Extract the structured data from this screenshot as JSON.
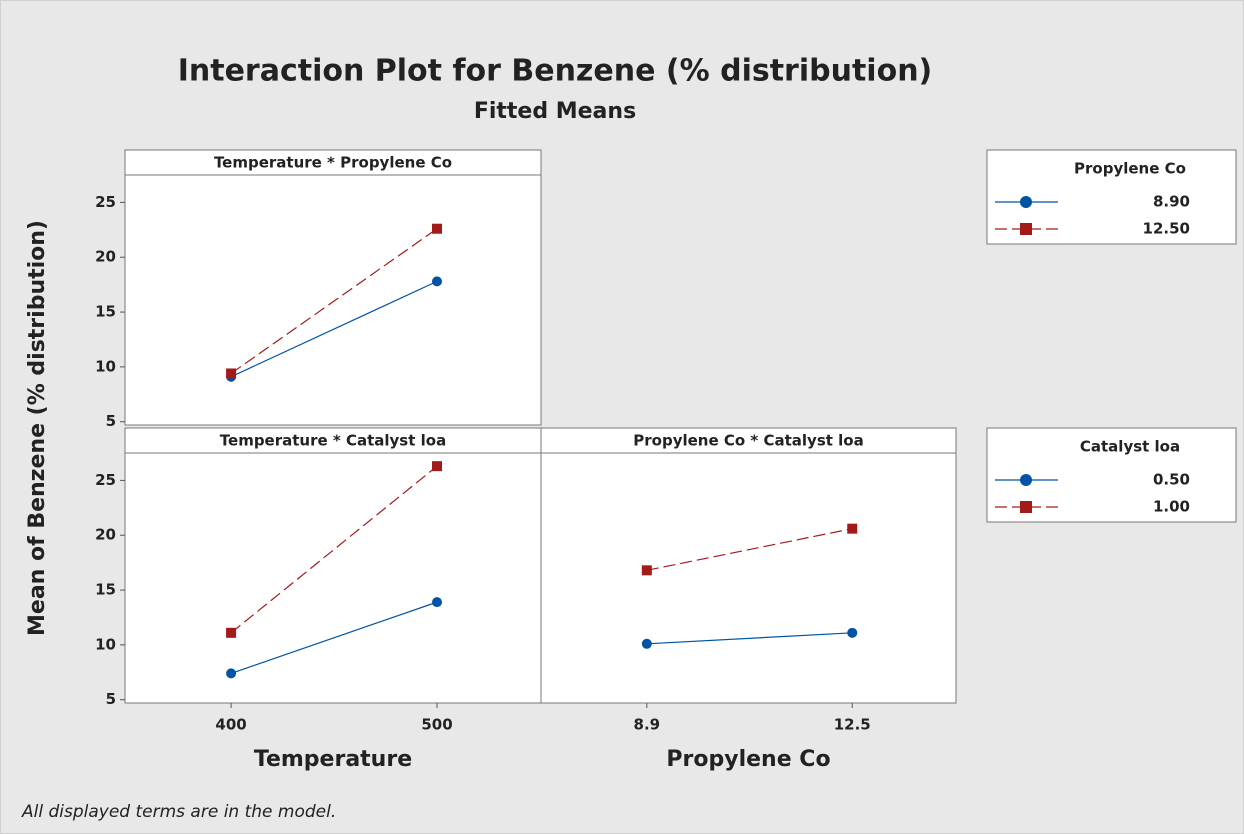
{
  "title": "Interaction Plot for Benzene (% distribution)",
  "subtitle": "Fitted Means",
  "ylabel": "Mean of Benzene (% distribution)",
  "footnote": "All displayed terms are in the model.",
  "chart_data": [
    {
      "type": "line",
      "title": "Temperature * Propylene Co",
      "legend_title": "Propylene Co",
      "ylim": [
        4.7,
        27.5
      ],
      "yticks": [
        5,
        10,
        15,
        20,
        25
      ],
      "series": [
        {
          "name": "8.90",
          "color": "#0054a6",
          "marker": "circle",
          "dash": false,
          "values": [
            9.1,
            17.8
          ]
        },
        {
          "name": "12.50",
          "color": "#a31a1a",
          "marker": "square",
          "dash": true,
          "values": [
            9.4,
            22.6
          ]
        }
      ]
    },
    {
      "type": "line",
      "title": "Temperature * Catalyst loa",
      "legend_title": "Catalyst loa",
      "xlabel": "Temperature",
      "categories": [
        "400",
        "500"
      ],
      "ylim": [
        4.7,
        27.5
      ],
      "yticks": [
        5,
        10,
        15,
        20,
        25
      ],
      "series": [
        {
          "name": "0.50",
          "color": "#0054a6",
          "marker": "circle",
          "dash": false,
          "values": [
            7.4,
            13.9
          ]
        },
        {
          "name": "1.00",
          "color": "#a31a1a",
          "marker": "square",
          "dash": true,
          "values": [
            11.1,
            26.3
          ]
        }
      ]
    },
    {
      "type": "line",
      "title": "Propylene Co * Catalyst loa",
      "xlabel": "Propylene Co",
      "categories": [
        "8.9",
        "12.5"
      ],
      "ylim": [
        4.7,
        27.5
      ],
      "series": [
        {
          "color": "#0054a6",
          "marker": "circle",
          "dash": false,
          "values": [
            10.1,
            11.1
          ]
        },
        {
          "color": "#a31a1a",
          "marker": "square",
          "dash": true,
          "values": [
            16.8,
            20.6
          ]
        }
      ]
    }
  ]
}
